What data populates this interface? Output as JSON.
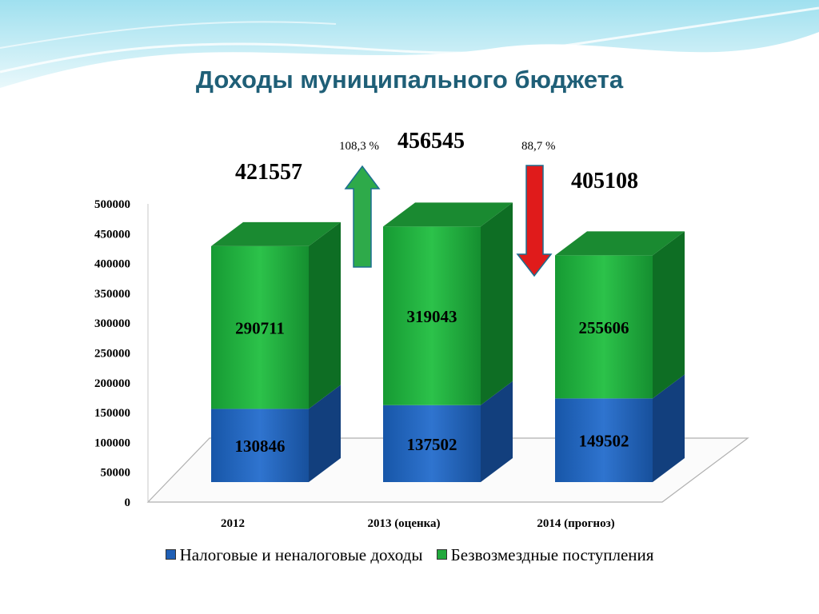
{
  "title": "Доходы муниципального бюджета",
  "totals": [
    "421557",
    "456545",
    "405108"
  ],
  "changes": [
    {
      "label": "108,3 %",
      "direction": "up",
      "color": "#2eaa4a"
    },
    {
      "label": "88,7 %",
      "direction": "down",
      "color": "#e01b1b"
    }
  ],
  "colors": {
    "title": "#1f5f77",
    "tax": "#1f5fb5",
    "free": "#22a93d"
  },
  "chart_data": {
    "type": "bar",
    "stacked": true,
    "categories": [
      "2012",
      "2013 (оценка)",
      "2014 (прогноз)"
    ],
    "series": [
      {
        "name": "Налоговые и неналоговые доходы",
        "values": [
          130846,
          137502,
          149502
        ]
      },
      {
        "name": "Безвозмездные поступления",
        "values": [
          290711,
          319043,
          255606
        ]
      }
    ],
    "yticks": [
      "0",
      "50000",
      "100000",
      "150000",
      "200000",
      "250000",
      "300000",
      "350000",
      "400000",
      "450000",
      "500000"
    ],
    "ylim": [
      0,
      500000
    ],
    "legend": "bottom"
  }
}
